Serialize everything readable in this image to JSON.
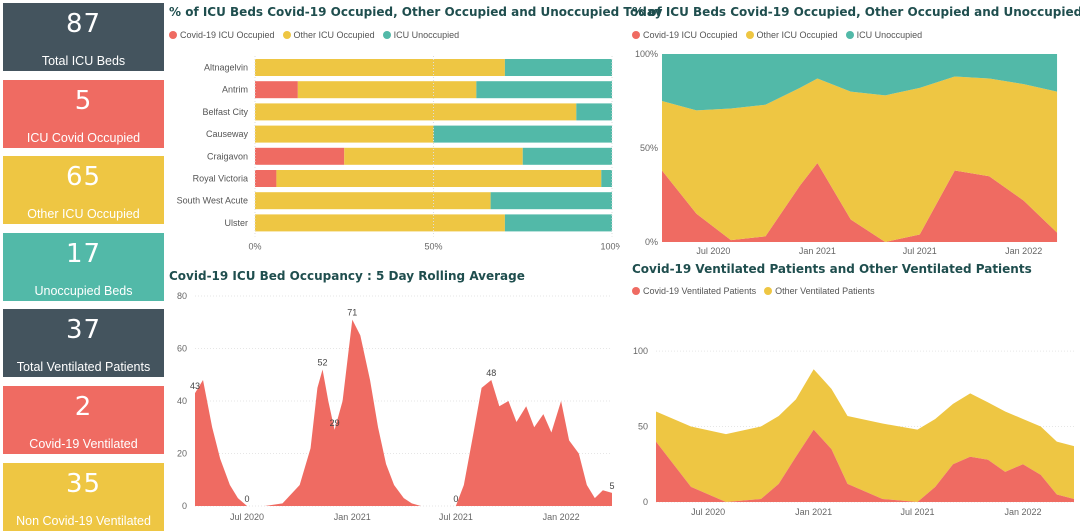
{
  "colors": {
    "covid": "#ef6b62",
    "other": "#eec643",
    "unocc": "#52b9a8",
    "dark": "#44545e"
  },
  "kpis": [
    {
      "value": "87",
      "label": "Total ICU Beds",
      "color": "#44545e"
    },
    {
      "value": "5",
      "label": "ICU Covid Occupied",
      "color": "#ef6b62"
    },
    {
      "value": "65",
      "label": "Other ICU Occupied",
      "color": "#eec643"
    },
    {
      "value": "17",
      "label": "Unoccupied Beds",
      "color": "#52b9a8"
    },
    {
      "value": "37",
      "label": "Total Ventilated Patients",
      "color": "#44545e"
    },
    {
      "value": "2",
      "label": "Covid-19 Ventilated",
      "color": "#ef6b62"
    },
    {
      "value": "35",
      "label": "Non Covid-19 Ventilated",
      "color": "#eec643"
    }
  ],
  "chart_data": [
    {
      "type": "bar",
      "orientation": "horizontal-stacked-100",
      "title": "% of ICU Beds Covid-19 Occupied, Other Occupied and Unoccupied Today",
      "legend": [
        "Covid-19 ICU Occupied",
        "Other ICU Occupied",
        "ICU Unoccupied"
      ],
      "categories": [
        "Altnagelvin",
        "Antrim",
        "Belfast City",
        "Causeway",
        "Craigavon",
        "Royal Victoria",
        "South West Acute",
        "Ulster"
      ],
      "series": [
        {
          "name": "Covid-19 ICU Occupied",
          "values": [
            0,
            12,
            0,
            0,
            25,
            6,
            0,
            0
          ]
        },
        {
          "name": "Other ICU Occupied",
          "values": [
            70,
            50,
            90,
            50,
            50,
            91,
            66,
            70
          ]
        },
        {
          "name": "ICU Unoccupied",
          "values": [
            30,
            38,
            10,
            50,
            25,
            3,
            34,
            30
          ]
        }
      ],
      "xticks": [
        "0%",
        "50%",
        "100%"
      ]
    },
    {
      "type": "area",
      "stacking": "100%",
      "title": "% of ICU Beds Covid-19 Occupied, Other Occupied and Unoccupied",
      "legend": [
        "Covid-19 ICU Occupied",
        "Other ICU Occupied",
        "ICU Unoccupied"
      ],
      "x": [
        "2020-04",
        "2020-06",
        "2020-08",
        "2020-10",
        "2020-12",
        "2021-01",
        "2021-03",
        "2021-05",
        "2021-07",
        "2021-09",
        "2021-11",
        "2022-01",
        "2022-03"
      ],
      "series": [
        {
          "name": "Covid-19 ICU Occupied",
          "values": [
            38,
            15,
            1,
            3,
            30,
            42,
            12,
            0,
            4,
            38,
            35,
            22,
            5
          ]
        },
        {
          "name": "Other ICU Occupied",
          "values": [
            37,
            55,
            70,
            70,
            52,
            45,
            68,
            78,
            78,
            50,
            52,
            62,
            75
          ]
        },
        {
          "name": "ICU Unoccupied",
          "values": [
            25,
            30,
            29,
            27,
            18,
            13,
            20,
            22,
            18,
            12,
            13,
            16,
            20
          ]
        }
      ],
      "xticks": [
        "Jul 2020",
        "Jan 2021",
        "Jul 2021",
        "Jan 2022"
      ],
      "yticks": [
        "0%",
        "50%",
        "100%"
      ]
    },
    {
      "type": "area",
      "title": "Covid-19 ICU Bed Occupancy : 5 Day Rolling Average",
      "x": [
        "2020-04-01",
        "2020-04-15",
        "2020-05-01",
        "2020-05-15",
        "2020-06-01",
        "2020-06-15",
        "2020-07-01",
        "2020-08-01",
        "2020-09-01",
        "2020-10-01",
        "2020-10-20",
        "2020-11-01",
        "2020-11-10",
        "2020-11-20",
        "2020-12-01",
        "2020-12-15",
        "2021-01-01",
        "2021-01-15",
        "2021-02-01",
        "2021-02-15",
        "2021-03-01",
        "2021-03-15",
        "2021-04-01",
        "2021-04-15",
        "2021-05-01",
        "2021-06-01",
        "2021-07-01",
        "2021-07-15",
        "2021-08-01",
        "2021-08-15",
        "2021-09-01",
        "2021-09-15",
        "2021-10-01",
        "2021-10-15",
        "2021-11-01",
        "2021-11-15",
        "2021-12-01",
        "2021-12-15",
        "2022-01-01",
        "2022-01-15",
        "2022-02-01",
        "2022-02-15",
        "2022-03-01",
        "2022-03-15",
        "2022-03-31"
      ],
      "values": [
        43,
        48,
        30,
        18,
        8,
        3,
        0,
        0,
        1,
        8,
        22,
        45,
        52,
        40,
        29,
        40,
        71,
        65,
        48,
        30,
        16,
        8,
        3,
        1,
        0,
        0,
        0,
        8,
        28,
        45,
        48,
        38,
        40,
        32,
        38,
        30,
        35,
        28,
        40,
        25,
        20,
        8,
        3,
        6,
        5
      ],
      "data_labels": [
        {
          "x": "2020-04-01",
          "label": "43"
        },
        {
          "x": "2020-07-01",
          "label": "0"
        },
        {
          "x": "2020-11-10",
          "label": "52"
        },
        {
          "x": "2020-12-01",
          "label": "29"
        },
        {
          "x": "2021-01-01",
          "label": "71"
        },
        {
          "x": "2021-07-01",
          "label": "0"
        },
        {
          "x": "2021-09-01",
          "label": "48"
        },
        {
          "x": "2022-03-31",
          "label": "5"
        }
      ],
      "ylim": [
        0,
        80
      ],
      "yticks": [
        "0",
        "20",
        "40",
        "60",
        "80"
      ],
      "xticks": [
        "Jul 2020",
        "Jan 2021",
        "Jul 2021",
        "Jan 2022"
      ]
    },
    {
      "type": "area",
      "stacking": "stacked",
      "title": "Covid-19 Ventilated Patients and Other Ventilated Patients",
      "legend": [
        "Covid-19 Ventilated Patients",
        "Other Ventilated Patients"
      ],
      "x": [
        "2020-04",
        "2020-06",
        "2020-08",
        "2020-10",
        "2020-11",
        "2020-12",
        "2021-01",
        "2021-02",
        "2021-03",
        "2021-05",
        "2021-07",
        "2021-08",
        "2021-09",
        "2021-10",
        "2021-11",
        "2021-12",
        "2022-01",
        "2022-02",
        "2022-03",
        "2022-03-31"
      ],
      "series": [
        {
          "name": "Covid-19 Ventilated Patients",
          "values": [
            40,
            10,
            0,
            2,
            12,
            30,
            48,
            35,
            12,
            2,
            0,
            10,
            25,
            30,
            28,
            20,
            25,
            18,
            5,
            2
          ]
        },
        {
          "name": "Other Ventilated Patients",
          "values": [
            20,
            40,
            45,
            48,
            45,
            38,
            40,
            40,
            45,
            50,
            48,
            45,
            40,
            42,
            38,
            40,
            30,
            32,
            35,
            35
          ]
        }
      ],
      "ylim": [
        0,
        110
      ],
      "yticks": [
        "0",
        "50",
        "100"
      ],
      "xticks": [
        "Jul 2020",
        "Jan 2021",
        "Jul 2021",
        "Jan 2022"
      ]
    }
  ]
}
